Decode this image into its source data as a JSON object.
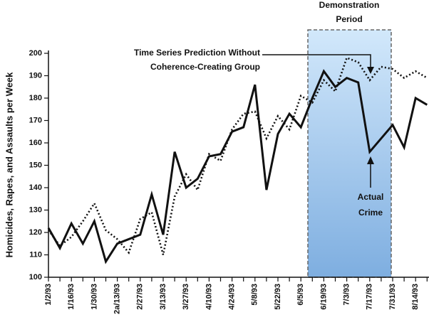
{
  "chart_data": {
    "type": "line",
    "y_label": "Homicides, Rapes, and Assaults per Week",
    "categories": [
      "1/2/93",
      null,
      "1/16/93",
      null,
      "1/30/93",
      null,
      "2a/13/93",
      null,
      "2/27/93",
      null,
      "3/13/93",
      null,
      "3/27/93",
      null,
      "4/10/93",
      null,
      "4/24/93",
      null,
      "5/8/93",
      null,
      "5/22/93",
      null,
      "6/5/93",
      null,
      "6/19/93",
      null,
      "7/3/93",
      null,
      "7/17/93",
      null,
      "7/31/93",
      null,
      "8/14/93",
      null
    ],
    "series": [
      {
        "name": "Actual Crime",
        "color": "#111111",
        "style": "solid",
        "values": [
          122,
          113,
          124,
          115,
          125,
          107,
          115,
          117,
          119,
          137,
          119,
          156,
          140,
          144,
          154,
          155,
          165,
          167,
          186,
          139,
          164,
          173,
          167,
          180,
          192,
          185,
          189,
          187,
          156,
          162,
          168,
          158,
          180,
          177
        ]
      },
      {
        "name": "Time Series Prediction Without Coherence-Creating Group",
        "color": "#111111",
        "style": "dotted",
        "values": [
          121,
          114,
          118,
          125,
          133,
          121,
          117,
          111,
          126,
          129,
          110,
          136,
          146,
          139,
          155,
          152,
          166,
          173,
          174,
          162,
          172,
          166,
          181,
          178,
          188,
          183,
          198,
          196,
          188,
          194,
          193,
          189,
          192,
          189
        ]
      }
    ],
    "annotations": {
      "prediction": [
        "Time Series Prediction Without",
        "Coherence-Creating Group"
      ],
      "actual": [
        "Actual",
        "Crime"
      ],
      "period": [
        "Demonstration",
        "Period"
      ]
    },
    "ylim": [
      100,
      200
    ],
    "yticks": [
      100,
      110,
      120,
      130,
      140,
      150,
      160,
      170,
      180,
      190,
      200
    ]
  }
}
